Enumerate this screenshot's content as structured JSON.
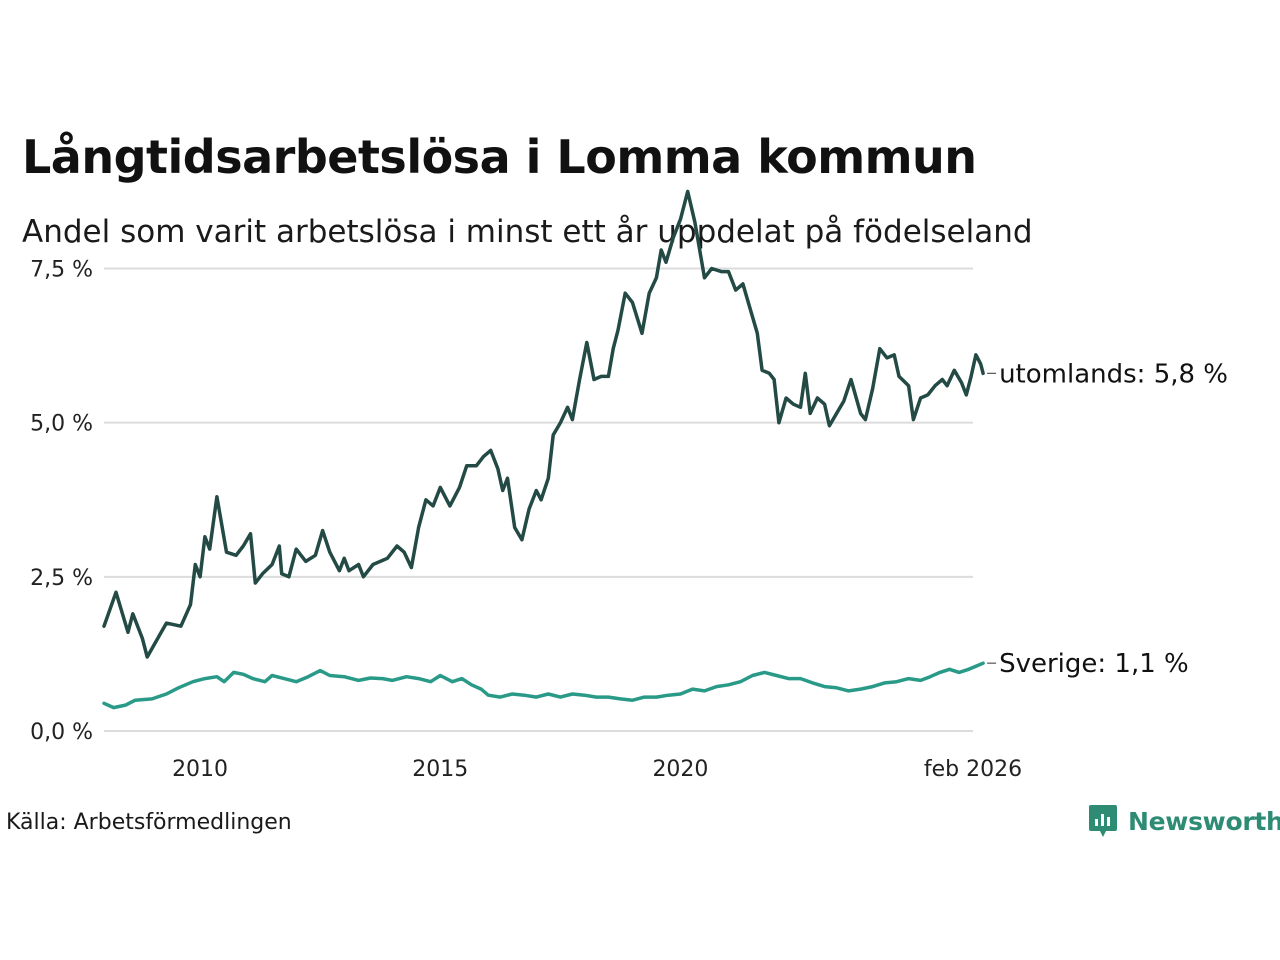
{
  "title": "Långtidsarbetslösa i Lomma kommun",
  "subtitle": "Andel som varit arbetslösa i minst ett år uppdelat på födelseland",
  "source": "Källa: Arbetsförmedlingen",
  "brand": "Newsworthy",
  "colors": {
    "utomlands": "#234a44",
    "sverige": "#2a9a88",
    "grid": "#dcdcdc",
    "brand": "#2e8b74"
  },
  "chart_data": {
    "type": "line",
    "title": "Långtidsarbetslösa i Lomma kommun",
    "ylim": [
      0,
      9
    ],
    "xlim": [
      2008.0,
      2026.09
    ],
    "y_ticks": [
      0,
      2.5,
      5,
      7.5
    ],
    "y_tick_labels": [
      "0,0 %",
      "2,5 %",
      "5,0 %",
      "7,5 %"
    ],
    "x_ticks": [
      2010,
      2015,
      2020,
      2026.09
    ],
    "x_tick_labels": [
      "2010",
      "2015",
      "2020",
      "feb 2026"
    ],
    "grid": true,
    "series": [
      {
        "name": "utomlands",
        "end_label": "utomlands: 5,8 %",
        "points": [
          [
            2008.0,
            1.7
          ],
          [
            2008.25,
            2.25
          ],
          [
            2008.5,
            1.6
          ],
          [
            2008.6,
            1.9
          ],
          [
            2008.8,
            1.5
          ],
          [
            2008.9,
            1.2
          ],
          [
            2009.3,
            1.75
          ],
          [
            2009.6,
            1.7
          ],
          [
            2009.8,
            2.05
          ],
          [
            2009.9,
            2.7
          ],
          [
            2010.0,
            2.5
          ],
          [
            2010.1,
            3.15
          ],
          [
            2010.2,
            2.95
          ],
          [
            2010.35,
            3.8
          ],
          [
            2010.55,
            2.9
          ],
          [
            2010.75,
            2.85
          ],
          [
            2010.9,
            3.0
          ],
          [
            2011.05,
            3.2
          ],
          [
            2011.15,
            2.4
          ],
          [
            2011.3,
            2.55
          ],
          [
            2011.5,
            2.7
          ],
          [
            2011.65,
            3.0
          ],
          [
            2011.7,
            2.55
          ],
          [
            2011.85,
            2.5
          ],
          [
            2012.0,
            2.95
          ],
          [
            2012.2,
            2.75
          ],
          [
            2012.4,
            2.85
          ],
          [
            2012.55,
            3.25
          ],
          [
            2012.7,
            2.9
          ],
          [
            2012.9,
            2.6
          ],
          [
            2013.0,
            2.8
          ],
          [
            2013.1,
            2.6
          ],
          [
            2013.3,
            2.7
          ],
          [
            2013.4,
            2.5
          ],
          [
            2013.6,
            2.7
          ],
          [
            2013.9,
            2.8
          ],
          [
            2014.1,
            3.0
          ],
          [
            2014.25,
            2.9
          ],
          [
            2014.4,
            2.65
          ],
          [
            2014.55,
            3.3
          ],
          [
            2014.7,
            3.75
          ],
          [
            2014.85,
            3.65
          ],
          [
            2015.0,
            3.95
          ],
          [
            2015.2,
            3.65
          ],
          [
            2015.4,
            3.95
          ],
          [
            2015.55,
            4.3
          ],
          [
            2015.75,
            4.3
          ],
          [
            2015.9,
            4.45
          ],
          [
            2016.05,
            4.55
          ],
          [
            2016.2,
            4.25
          ],
          [
            2016.3,
            3.9
          ],
          [
            2016.4,
            4.1
          ],
          [
            2016.55,
            3.3
          ],
          [
            2016.7,
            3.1
          ],
          [
            2016.85,
            3.6
          ],
          [
            2017.0,
            3.9
          ],
          [
            2017.1,
            3.75
          ],
          [
            2017.25,
            4.1
          ],
          [
            2017.35,
            4.8
          ],
          [
            2017.5,
            5.0
          ],
          [
            2017.65,
            5.25
          ],
          [
            2017.75,
            5.05
          ],
          [
            2017.9,
            5.7
          ],
          [
            2018.05,
            6.3
          ],
          [
            2018.2,
            5.7
          ],
          [
            2018.35,
            5.75
          ],
          [
            2018.5,
            5.75
          ],
          [
            2018.6,
            6.2
          ],
          [
            2018.7,
            6.5
          ],
          [
            2018.85,
            7.1
          ],
          [
            2019.0,
            6.95
          ],
          [
            2019.1,
            6.7
          ],
          [
            2019.2,
            6.45
          ],
          [
            2019.35,
            7.1
          ],
          [
            2019.5,
            7.35
          ],
          [
            2019.6,
            7.8
          ],
          [
            2019.7,
            7.6
          ],
          [
            2019.85,
            8.0
          ],
          [
            2020.0,
            8.3
          ],
          [
            2020.15,
            8.75
          ],
          [
            2020.3,
            8.25
          ],
          [
            2020.5,
            7.35
          ],
          [
            2020.65,
            7.5
          ],
          [
            2020.85,
            7.45
          ],
          [
            2021.0,
            7.45
          ],
          [
            2021.15,
            7.15
          ],
          [
            2021.3,
            7.25
          ],
          [
            2021.45,
            6.85
          ],
          [
            2021.6,
            6.45
          ],
          [
            2021.7,
            5.85
          ],
          [
            2021.85,
            5.8
          ],
          [
            2021.95,
            5.7
          ],
          [
            2022.05,
            5.0
          ],
          [
            2022.2,
            5.4
          ],
          [
            2022.35,
            5.3
          ],
          [
            2022.5,
            5.25
          ],
          [
            2022.6,
            5.8
          ],
          [
            2022.7,
            5.15
          ],
          [
            2022.85,
            5.4
          ],
          [
            2023.0,
            5.3
          ],
          [
            2023.1,
            4.95
          ],
          [
            2023.25,
            5.15
          ],
          [
            2023.4,
            5.35
          ],
          [
            2023.55,
            5.7
          ],
          [
            2023.75,
            5.15
          ],
          [
            2023.85,
            5.05
          ],
          [
            2024.0,
            5.55
          ],
          [
            2024.15,
            6.2
          ],
          [
            2024.3,
            6.05
          ],
          [
            2024.45,
            6.1
          ],
          [
            2024.55,
            5.75
          ],
          [
            2024.75,
            5.6
          ],
          [
            2024.85,
            5.05
          ],
          [
            2025.0,
            5.4
          ],
          [
            2025.15,
            5.45
          ],
          [
            2025.3,
            5.6
          ],
          [
            2025.45,
            5.7
          ],
          [
            2025.55,
            5.6
          ],
          [
            2025.7,
            5.85
          ],
          [
            2025.85,
            5.65
          ],
          [
            2025.95,
            5.45
          ],
          [
            2026.05,
            5.75
          ],
          [
            2026.15,
            6.1
          ],
          [
            2026.25,
            5.95
          ],
          [
            2026.3,
            5.8
          ]
        ]
      },
      {
        "name": "Sverige",
        "end_label": "Sverige: 1,1 %",
        "points": [
          [
            2008.0,
            0.45
          ],
          [
            2008.2,
            0.38
          ],
          [
            2008.45,
            0.42
          ],
          [
            2008.65,
            0.5
          ],
          [
            2009.0,
            0.52
          ],
          [
            2009.3,
            0.6
          ],
          [
            2009.55,
            0.7
          ],
          [
            2009.85,
            0.8
          ],
          [
            2010.1,
            0.85
          ],
          [
            2010.35,
            0.88
          ],
          [
            2010.5,
            0.8
          ],
          [
            2010.7,
            0.95
          ],
          [
            2010.9,
            0.92
          ],
          [
            2011.1,
            0.85
          ],
          [
            2011.35,
            0.8
          ],
          [
            2011.5,
            0.9
          ],
          [
            2011.75,
            0.85
          ],
          [
            2012.0,
            0.8
          ],
          [
            2012.25,
            0.88
          ],
          [
            2012.5,
            0.98
          ],
          [
            2012.7,
            0.9
          ],
          [
            2013.0,
            0.88
          ],
          [
            2013.3,
            0.82
          ],
          [
            2013.55,
            0.86
          ],
          [
            2013.8,
            0.85
          ],
          [
            2014.0,
            0.82
          ],
          [
            2014.3,
            0.88
          ],
          [
            2014.55,
            0.85
          ],
          [
            2014.8,
            0.8
          ],
          [
            2015.0,
            0.9
          ],
          [
            2015.25,
            0.8
          ],
          [
            2015.45,
            0.85
          ],
          [
            2015.65,
            0.75
          ],
          [
            2015.85,
            0.68
          ],
          [
            2016.0,
            0.58
          ],
          [
            2016.25,
            0.55
          ],
          [
            2016.5,
            0.6
          ],
          [
            2016.75,
            0.58
          ],
          [
            2017.0,
            0.55
          ],
          [
            2017.25,
            0.6
          ],
          [
            2017.5,
            0.55
          ],
          [
            2017.75,
            0.6
          ],
          [
            2018.0,
            0.58
          ],
          [
            2018.25,
            0.55
          ],
          [
            2018.5,
            0.55
          ],
          [
            2018.75,
            0.52
          ],
          [
            2019.0,
            0.5
          ],
          [
            2019.25,
            0.55
          ],
          [
            2019.5,
            0.55
          ],
          [
            2019.75,
            0.58
          ],
          [
            2020.0,
            0.6
          ],
          [
            2020.25,
            0.68
          ],
          [
            2020.5,
            0.65
          ],
          [
            2020.75,
            0.72
          ],
          [
            2021.0,
            0.75
          ],
          [
            2021.25,
            0.8
          ],
          [
            2021.5,
            0.9
          ],
          [
            2021.75,
            0.95
          ],
          [
            2022.0,
            0.9
          ],
          [
            2022.25,
            0.85
          ],
          [
            2022.5,
            0.85
          ],
          [
            2022.75,
            0.78
          ],
          [
            2023.0,
            0.72
          ],
          [
            2023.25,
            0.7
          ],
          [
            2023.5,
            0.65
          ],
          [
            2023.75,
            0.68
          ],
          [
            2024.0,
            0.72
          ],
          [
            2024.25,
            0.78
          ],
          [
            2024.5,
            0.8
          ],
          [
            2024.75,
            0.85
          ],
          [
            2025.0,
            0.82
          ],
          [
            2025.2,
            0.88
          ],
          [
            2025.4,
            0.95
          ],
          [
            2025.6,
            1.0
          ],
          [
            2025.8,
            0.95
          ],
          [
            2026.0,
            1.0
          ],
          [
            2026.15,
            1.05
          ],
          [
            2026.3,
            1.1
          ]
        ]
      }
    ]
  }
}
